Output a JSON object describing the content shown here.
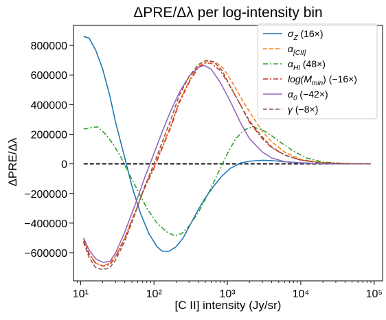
{
  "chart_data": {
    "type": "line",
    "title": "ΔPRE/Δλ per log-intensity bin",
    "xlabel": "[C II] intensity (Jy/sr)",
    "ylabel": "ΔPRE/Δλ",
    "xscale": "log",
    "xlim": [
      8,
      130000
    ],
    "ylim": [
      -790000,
      935000
    ],
    "grid": false,
    "legend_position": "top-right",
    "x_ticks": [
      {
        "value": 10,
        "label": "10¹"
      },
      {
        "value": 100,
        "label": "10²"
      },
      {
        "value": 1000,
        "label": "10³"
      },
      {
        "value": 10000,
        "label": "10⁴"
      },
      {
        "value": 100000,
        "label": "10⁵"
      }
    ],
    "y_ticks": [
      {
        "value": 800000,
        "label": "800000"
      },
      {
        "value": 600000,
        "label": "600000"
      },
      {
        "value": 400000,
        "label": "400000"
      },
      {
        "value": 200000,
        "label": "200000"
      },
      {
        "value": 0,
        "label": "0"
      },
      {
        "value": -200000,
        "label": "−200000"
      },
      {
        "value": -400000,
        "label": "−400000"
      },
      {
        "value": -600000,
        "label": "−600000"
      }
    ],
    "reference_line": {
      "y": 0,
      "x_from": 11,
      "x_to": 90000,
      "color": "#000000"
    },
    "series": [
      {
        "name": "σZ (16×)",
        "color": "#1f77b4",
        "dash": "",
        "points": [
          [
            11,
            860000
          ],
          [
            13,
            850000
          ],
          [
            16,
            770000
          ],
          [
            20,
            640000
          ],
          [
            25,
            460000
          ],
          [
            30,
            280000
          ],
          [
            40,
            40000
          ],
          [
            50,
            -150000
          ],
          [
            65,
            -330000
          ],
          [
            85,
            -470000
          ],
          [
            110,
            -560000
          ],
          [
            130,
            -590000
          ],
          [
            160,
            -590000
          ],
          [
            200,
            -560000
          ],
          [
            250,
            -500000
          ],
          [
            320,
            -400000
          ],
          [
            400,
            -310000
          ],
          [
            500,
            -230000
          ],
          [
            650,
            -150000
          ],
          [
            850,
            -80000
          ],
          [
            1100,
            -30000
          ],
          [
            1500,
            5000
          ],
          [
            2000,
            18000
          ],
          [
            3000,
            24000
          ],
          [
            4000,
            22000
          ],
          [
            6000,
            15000
          ],
          [
            10000,
            7000
          ],
          [
            20000,
            2000
          ],
          [
            50000,
            0
          ],
          [
            90000,
            0
          ]
        ]
      },
      {
        "name": "α[CII]",
        "color": "#ff7f0e",
        "dash": "6,3",
        "points": [
          [
            11,
            -510000
          ],
          [
            13,
            -600000
          ],
          [
            16,
            -670000
          ],
          [
            20,
            -690000
          ],
          [
            25,
            -670000
          ],
          [
            30,
            -620000
          ],
          [
            40,
            -500000
          ],
          [
            55,
            -330000
          ],
          [
            75,
            -150000
          ],
          [
            100,
            -20000
          ],
          [
            130,
            120000
          ],
          [
            170,
            260000
          ],
          [
            220,
            420000
          ],
          [
            300,
            560000
          ],
          [
            400,
            660000
          ],
          [
            550,
            695000
          ],
          [
            700,
            685000
          ],
          [
            900,
            640000
          ],
          [
            1200,
            540000
          ],
          [
            1600,
            430000
          ],
          [
            2200,
            320000
          ],
          [
            3000,
            220000
          ],
          [
            4000,
            150000
          ],
          [
            6000,
            80000
          ],
          [
            10000,
            30000
          ],
          [
            20000,
            8000
          ],
          [
            50000,
            2000
          ],
          [
            90000,
            0
          ]
        ]
      },
      {
        "name": "αHI (48×)",
        "color": "#2ca02c",
        "dash": "7,3,2,3",
        "points": [
          [
            11,
            235000
          ],
          [
            14,
            245000
          ],
          [
            17,
            250000
          ],
          [
            22,
            200000
          ],
          [
            28,
            130000
          ],
          [
            35,
            50000
          ],
          [
            45,
            -60000
          ],
          [
            60,
            -180000
          ],
          [
            80,
            -300000
          ],
          [
            110,
            -400000
          ],
          [
            150,
            -460000
          ],
          [
            190,
            -485000
          ],
          [
            240,
            -470000
          ],
          [
            300,
            -420000
          ],
          [
            400,
            -330000
          ],
          [
            550,
            -200000
          ],
          [
            750,
            -60000
          ],
          [
            1000,
            70000
          ],
          [
            1300,
            170000
          ],
          [
            1700,
            230000
          ],
          [
            2200,
            250000
          ],
          [
            3000,
            230000
          ],
          [
            4000,
            190000
          ],
          [
            5500,
            140000
          ],
          [
            8000,
            85000
          ],
          [
            12000,
            40000
          ],
          [
            20000,
            12000
          ],
          [
            40000,
            2000
          ],
          [
            90000,
            0
          ]
        ]
      },
      {
        "name": "log(Mmin) (−16×)",
        "color": "#d62728",
        "dash": "7,3,2,3",
        "points": [
          [
            11,
            -520000
          ],
          [
            13,
            -610000
          ],
          [
            16,
            -670000
          ],
          [
            20,
            -690000
          ],
          [
            25,
            -680000
          ],
          [
            30,
            -630000
          ],
          [
            40,
            -500000
          ],
          [
            55,
            -330000
          ],
          [
            75,
            -160000
          ],
          [
            100,
            -30000
          ],
          [
            130,
            110000
          ],
          [
            170,
            250000
          ],
          [
            220,
            410000
          ],
          [
            300,
            550000
          ],
          [
            400,
            650000
          ],
          [
            500,
            680000
          ],
          [
            600,
            680000
          ],
          [
            800,
            630000
          ],
          [
            1100,
            520000
          ],
          [
            1500,
            400000
          ],
          [
            2000,
            280000
          ],
          [
            3000,
            170000
          ],
          [
            4000,
            110000
          ],
          [
            6000,
            60000
          ],
          [
            10000,
            25000
          ],
          [
            20000,
            6000
          ],
          [
            50000,
            1000
          ],
          [
            90000,
            0
          ]
        ]
      },
      {
        "name": "α0 (−42×)",
        "color": "#9467bd",
        "dash": "",
        "points": [
          [
            11,
            -500000
          ],
          [
            13,
            -580000
          ],
          [
            16,
            -640000
          ],
          [
            20,
            -665000
          ],
          [
            25,
            -660000
          ],
          [
            30,
            -600000
          ],
          [
            40,
            -460000
          ],
          [
            55,
            -280000
          ],
          [
            75,
            -90000
          ],
          [
            100,
            70000
          ],
          [
            130,
            220000
          ],
          [
            170,
            360000
          ],
          [
            220,
            480000
          ],
          [
            300,
            590000
          ],
          [
            400,
            650000
          ],
          [
            480,
            665000
          ],
          [
            600,
            640000
          ],
          [
            800,
            550000
          ],
          [
            1100,
            420000
          ],
          [
            1500,
            280000
          ],
          [
            2000,
            170000
          ],
          [
            3000,
            80000
          ],
          [
            4000,
            40000
          ],
          [
            6000,
            15000
          ],
          [
            10000,
            5000
          ],
          [
            20000,
            1000
          ],
          [
            90000,
            0
          ]
        ]
      },
      {
        "name": "γ (−8×)",
        "color": "#8c564b",
        "dash": "6,3",
        "points": [
          [
            11,
            -530000
          ],
          [
            13,
            -630000
          ],
          [
            16,
            -700000
          ],
          [
            20,
            -715000
          ],
          [
            25,
            -700000
          ],
          [
            30,
            -650000
          ],
          [
            40,
            -520000
          ],
          [
            55,
            -340000
          ],
          [
            75,
            -150000
          ],
          [
            100,
            0
          ],
          [
            130,
            150000
          ],
          [
            170,
            300000
          ],
          [
            220,
            460000
          ],
          [
            300,
            590000
          ],
          [
            400,
            670000
          ],
          [
            520,
            700000
          ],
          [
            650,
            690000
          ],
          [
            850,
            630000
          ],
          [
            1100,
            520000
          ],
          [
            1500,
            400000
          ],
          [
            2000,
            290000
          ],
          [
            3000,
            180000
          ],
          [
            4000,
            115000
          ],
          [
            6000,
            60000
          ],
          [
            10000,
            25000
          ],
          [
            20000,
            6000
          ],
          [
            50000,
            1000
          ],
          [
            90000,
            0
          ]
        ]
      }
    ]
  },
  "legend": {
    "items": [
      {
        "symbol": "σ",
        "sub": "Z",
        "rest": " (16×)",
        "color": "#1f77b4",
        "dash": ""
      },
      {
        "symbol": "α",
        "sub": "[CII]",
        "rest": "",
        "color": "#ff7f0e",
        "dash": "6,3"
      },
      {
        "symbol": "α",
        "sub": "HI",
        "rest": " (48×)",
        "color": "#2ca02c",
        "dash": "7,3,2,3"
      },
      {
        "symbol": "log(M",
        "sub": "min",
        "rest": ") (−16×)",
        "color": "#d62728",
        "dash": "7,3,2,3"
      },
      {
        "symbol": "α",
        "sub": "0",
        "rest": " (−42×)",
        "color": "#9467bd",
        "dash": ""
      },
      {
        "symbol": "γ",
        "sub": "",
        "rest": " (−8×)",
        "color": "#8c564b",
        "dash": "6,3"
      }
    ]
  }
}
